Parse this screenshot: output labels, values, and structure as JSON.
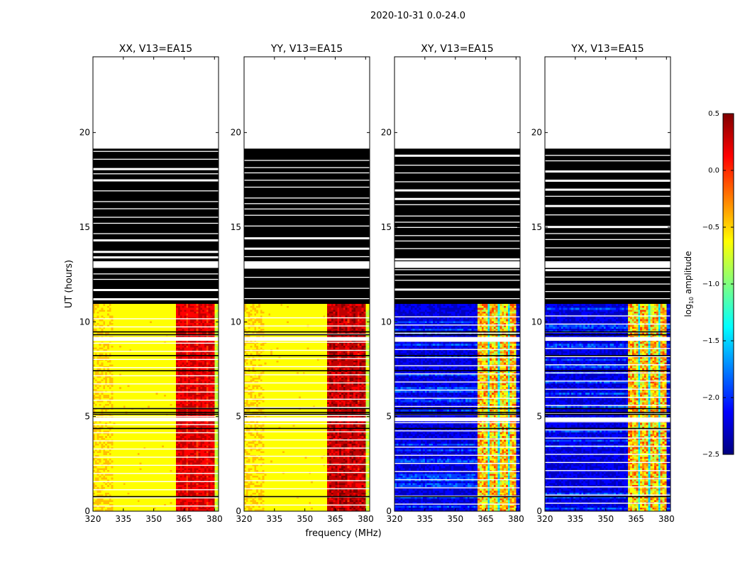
{
  "figure": {
    "suptitle": "2020-10-31 0.0-24.0",
    "xlabel": "frequency (MHz)",
    "ylabel": "UT (hours)"
  },
  "chart_data": {
    "type": "heatmap",
    "x_range": [
      320,
      382
    ],
    "y_range": [
      0,
      24
    ],
    "x_ticks": [
      "320",
      "335",
      "350",
      "365",
      "380"
    ],
    "y_ticks": [
      "0",
      "5",
      "10",
      "15",
      "20"
    ],
    "panels": [
      {
        "title": "XX, V13=EA15",
        "pol": "XX",
        "kind": "auto"
      },
      {
        "title": "YY, V13=EA15",
        "pol": "YY",
        "kind": "auto"
      },
      {
        "title": "XY, V13=EA15",
        "pol": "XY",
        "kind": "cross"
      },
      {
        "title": "YX, V13=EA15",
        "pol": "YX",
        "kind": "cross"
      }
    ],
    "data_end_hours": 10.95,
    "flagged_end_hours": 19.15,
    "rfi_band_mhz": [
      361,
      380
    ],
    "colorbar": {
      "label": "log10 amplitude",
      "label_base": "log",
      "label_sub": "10",
      "label_rest": " amplitude",
      "min": -2.5,
      "max": 0.5,
      "ticks": [
        "0.5",
        "0.0",
        "−0.5",
        "−1.0",
        "−1.5",
        "−2.0",
        "−2.5"
      ],
      "colormap": "jet",
      "colors": [
        "#00007f",
        "#0000ff",
        "#007fff",
        "#00ffff",
        "#7fff7f",
        "#ffff00",
        "#ff7f00",
        "#ff0000",
        "#7f0000"
      ]
    }
  }
}
